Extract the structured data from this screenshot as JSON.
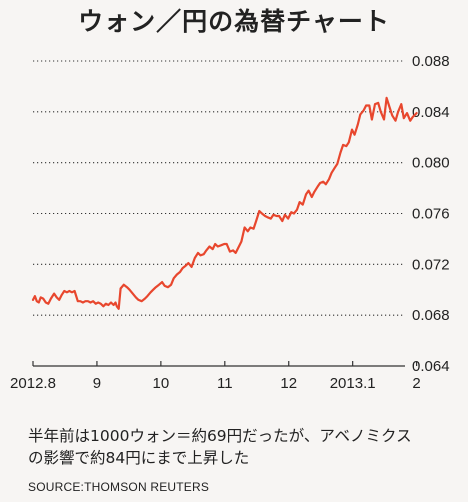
{
  "title": "ウォン／円の為替チャート",
  "caption_lines": [
    "半年前は1000ウォン＝約69円だったが、アベノミクス",
    "の影響で約84円にまで上昇した"
  ],
  "source": "SOURCE:THOMSON REUTERS",
  "colors": {
    "line": "#e8472e",
    "text": "#222222",
    "grid": "#333333",
    "background": "#f7f5f3"
  },
  "chart_data": {
    "type": "line",
    "title": "ウォン／円の為替チャート",
    "xlabel": "",
    "ylabel": "",
    "xlim": [
      0,
      6.1
    ],
    "ylim": [
      0.064,
      0.088
    ],
    "y_ticks": [
      {
        "value": 0.064,
        "label": "0.064"
      },
      {
        "value": 0.068,
        "label": "0.068"
      },
      {
        "value": 0.072,
        "label": "0.072"
      },
      {
        "value": 0.076,
        "label": "0.076"
      },
      {
        "value": 0.08,
        "label": "0.080"
      },
      {
        "value": 0.084,
        "label": "0.084"
      },
      {
        "value": 0.088,
        "label": "0.088"
      }
    ],
    "x_ticks": [
      {
        "value": 0,
        "label": "2012.8"
      },
      {
        "value": 1,
        "label": "9"
      },
      {
        "value": 2,
        "label": "10"
      },
      {
        "value": 3,
        "label": "11"
      },
      {
        "value": 4,
        "label": "12"
      },
      {
        "value": 5,
        "label": "2013.1"
      },
      {
        "value": 6,
        "label": "2"
      }
    ],
    "grid": "horizontal-dotted",
    "series": [
      {
        "x": [
          0.0,
          0.03,
          0.06,
          0.09,
          0.12,
          0.16,
          0.2,
          0.24,
          0.28,
          0.33,
          0.37,
          0.41,
          0.45,
          0.49,
          0.53,
          0.57,
          0.61,
          0.65,
          0.7,
          0.74,
          0.78,
          0.82,
          0.86,
          0.9,
          0.94,
          0.98,
          1.02,
          1.06,
          1.1,
          1.14,
          1.18,
          1.22,
          1.26,
          1.29,
          1.31,
          1.34,
          1.37,
          1.42,
          1.47,
          1.51,
          1.56,
          1.61,
          1.65,
          1.7,
          1.75,
          1.79,
          1.84,
          1.88,
          1.92,
          1.97,
          2.02,
          2.06,
          2.11,
          2.16,
          2.2,
          2.25,
          2.3,
          2.34,
          2.39,
          2.43,
          2.48,
          2.53,
          2.58,
          2.62,
          2.67,
          2.71,
          2.76,
          2.81,
          2.85,
          2.89,
          2.94,
          2.99,
          3.03,
          3.08,
          3.13,
          3.17,
          3.22,
          3.26,
          3.31,
          3.36,
          3.4,
          3.45,
          3.49,
          3.54,
          3.58,
          3.63,
          3.67,
          3.72,
          3.76,
          3.81,
          3.85,
          3.9,
          3.94,
          3.99,
          4.04,
          4.08,
          4.13,
          4.17,
          4.22,
          4.27,
          4.31,
          4.36,
          4.4,
          4.45,
          4.49,
          4.54,
          4.58,
          4.63,
          4.67,
          4.72,
          4.76,
          4.81,
          4.85,
          4.9,
          4.94,
          4.99,
          5.03,
          5.08,
          5.12,
          5.17,
          5.21,
          5.26,
          5.3,
          5.35,
          5.4,
          5.44,
          5.49,
          5.53,
          5.58,
          5.62,
          5.67,
          5.71,
          5.76,
          5.8,
          5.85,
          5.9,
          5.94,
          6.0
        ],
        "y": [
          0.0692,
          0.0695,
          0.0691,
          0.069,
          0.0694,
          0.0693,
          0.069,
          0.0689,
          0.0693,
          0.0697,
          0.0694,
          0.0692,
          0.0696,
          0.0699,
          0.0698,
          0.0699,
          0.0698,
          0.0699,
          0.0691,
          0.0691,
          0.069,
          0.0691,
          0.0691,
          0.069,
          0.0691,
          0.0689,
          0.069,
          0.0689,
          0.0687,
          0.0689,
          0.0688,
          0.069,
          0.0688,
          0.069,
          0.0687,
          0.0685,
          0.0701,
          0.0704,
          0.0702,
          0.07,
          0.0697,
          0.0694,
          0.0692,
          0.0691,
          0.0693,
          0.0695,
          0.0698,
          0.07,
          0.0702,
          0.0704,
          0.0706,
          0.0703,
          0.0702,
          0.0704,
          0.0709,
          0.0712,
          0.0714,
          0.0717,
          0.0719,
          0.0721,
          0.0718,
          0.0725,
          0.0729,
          0.0727,
          0.0728,
          0.0731,
          0.0734,
          0.0732,
          0.0736,
          0.0734,
          0.0735,
          0.0736,
          0.0736,
          0.073,
          0.0731,
          0.0729,
          0.0734,
          0.0738,
          0.0749,
          0.0746,
          0.0749,
          0.0748,
          0.0754,
          0.0762,
          0.076,
          0.0758,
          0.0757,
          0.0756,
          0.0759,
          0.0758,
          0.0758,
          0.0754,
          0.0759,
          0.0756,
          0.0761,
          0.076,
          0.0763,
          0.0769,
          0.0767,
          0.0775,
          0.0778,
          0.0773,
          0.0777,
          0.0781,
          0.0784,
          0.0785,
          0.0783,
          0.0787,
          0.0792,
          0.0796,
          0.0799,
          0.0808,
          0.0814,
          0.0813,
          0.0816,
          0.0826,
          0.0822,
          0.083,
          0.0838,
          0.0841,
          0.0845,
          0.0845,
          0.0834,
          0.0846,
          0.0847,
          0.084,
          0.0834,
          0.0851,
          0.0843,
          0.0837,
          0.0833,
          0.084,
          0.0846,
          0.0835,
          0.0839,
          0.0833,
          0.0836,
          0.0839
        ]
      }
    ]
  }
}
